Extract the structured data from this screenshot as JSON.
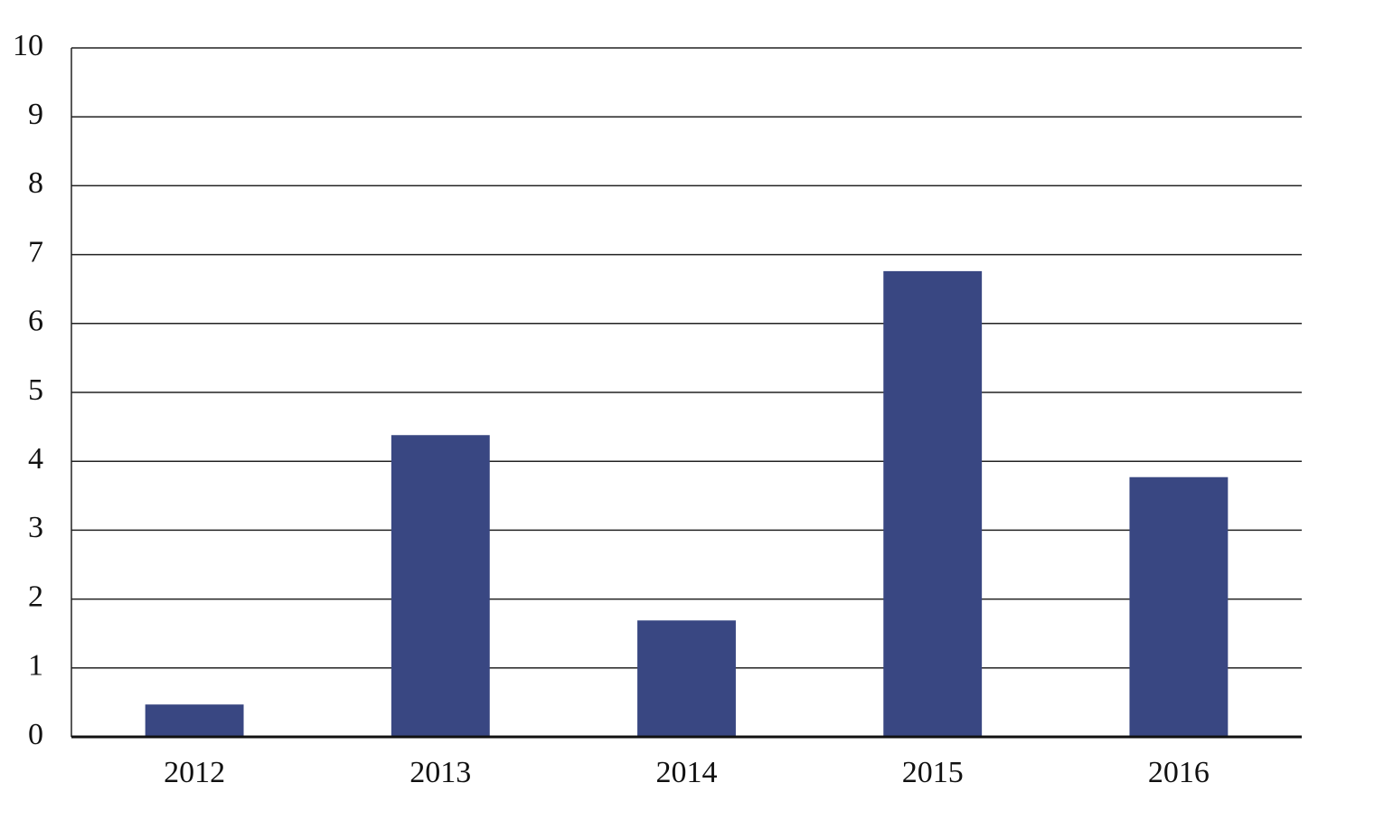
{
  "chart_data": {
    "type": "bar",
    "categories": [
      "2012",
      "2013",
      "2014",
      "2015",
      "2016"
    ],
    "values": [
      0.47,
      4.38,
      1.69,
      6.76,
      3.77
    ],
    "color": "#394782",
    "ylim": [
      0,
      10
    ],
    "yticks": [
      0,
      1,
      2,
      3,
      4,
      5,
      6,
      7,
      8,
      9,
      10
    ],
    "grid": true
  }
}
